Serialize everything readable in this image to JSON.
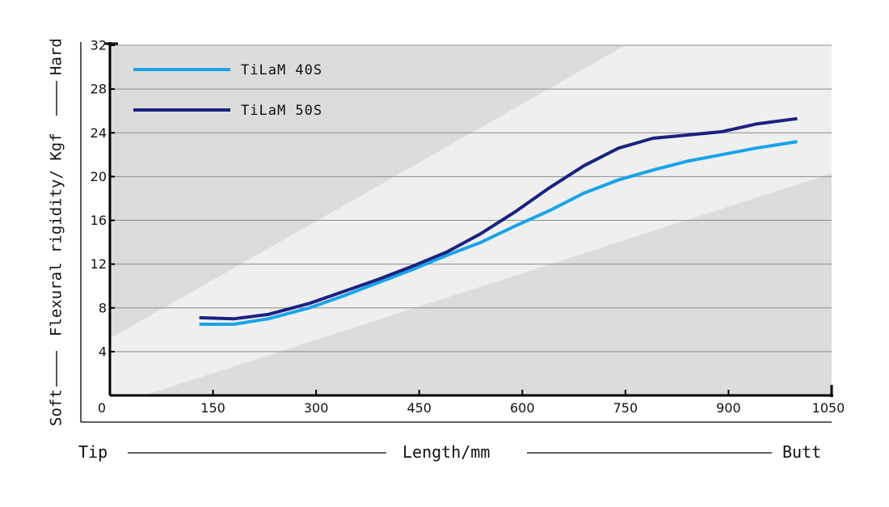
{
  "chart_data": {
    "type": "line",
    "title": "",
    "xlabel": "Length/mm",
    "xlabel_left": "Tip",
    "xlabel_right": "Butt",
    "ylabel": "Flexural rigidity/ Kgf",
    "ylabel_low": "Soft",
    "ylabel_high": "Hard",
    "xlim": [
      0,
      1050
    ],
    "ylim": [
      0,
      32
    ],
    "x_ticks": [
      0,
      150,
      300,
      450,
      600,
      750,
      900,
      1050
    ],
    "x_tick_labels": [
      "0",
      "150",
      "300",
      "450",
      "600",
      "750",
      "900",
      "1050"
    ],
    "y_ticks": [
      4,
      8,
      12,
      16,
      20,
      24,
      28,
      32
    ],
    "y_tick_labels": [
      "4",
      "8",
      "12",
      "16",
      "20",
      "24",
      "28",
      "32"
    ],
    "grid": true,
    "legend_position": "top-left",
    "band": {
      "upper_edge": {
        "x": [
          0,
          750
        ],
        "y": [
          5.2,
          32
        ]
      },
      "lower_edge": {
        "x": [
          50,
          1050
        ],
        "y": [
          0,
          20.3
        ]
      }
    },
    "series": [
      {
        "name": "TiLaM 40S",
        "color": "#1aa3e8",
        "x": [
          130,
          180,
          230,
          290,
          340,
          390,
          440,
          490,
          540,
          590,
          640,
          690,
          740,
          790,
          840,
          890,
          940,
          1000
        ],
        "y": [
          6.5,
          6.5,
          7.0,
          8.0,
          9.1,
          10.3,
          11.5,
          12.8,
          14.0,
          15.5,
          16.9,
          18.5,
          19.7,
          20.6,
          21.4,
          22.0,
          22.6,
          23.2
        ]
      },
      {
        "name": "TiLaM 50S",
        "color": "#1c2280",
        "x": [
          130,
          180,
          230,
          290,
          340,
          390,
          440,
          490,
          540,
          590,
          640,
          690,
          740,
          790,
          840,
          890,
          940,
          1000
        ],
        "y": [
          7.1,
          7.0,
          7.4,
          8.4,
          9.5,
          10.6,
          11.8,
          13.1,
          14.8,
          16.8,
          19.0,
          21.0,
          22.6,
          23.5,
          23.8,
          24.1,
          24.8,
          25.3
        ]
      }
    ]
  }
}
